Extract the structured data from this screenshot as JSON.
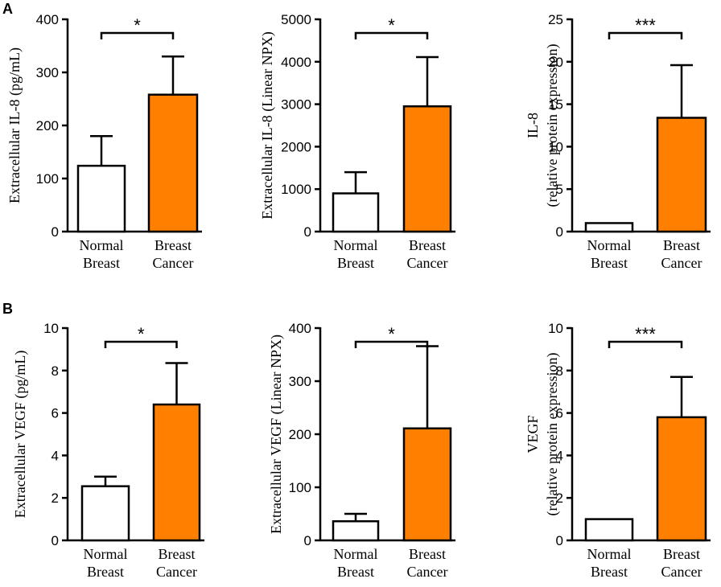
{
  "figure": {
    "panels": [
      {
        "label": "A"
      },
      {
        "label": "B"
      }
    ]
  },
  "colors": {
    "cancer_fill": "#ff8000",
    "normal_fill": "#ffffff",
    "stroke": "#000000"
  },
  "chart_data": [
    {
      "type": "bar",
      "panel": "A",
      "ylabel": [
        "Extracellular IL-8 (pg/mL)"
      ],
      "categories": [
        [
          "Normal",
          "Breast"
        ],
        [
          "Breast",
          "Cancer"
        ]
      ],
      "values": [
        124,
        258
      ],
      "errors": [
        56,
        72
      ],
      "ylim": [
        0,
        400
      ],
      "yticks": [
        0,
        100,
        200,
        300,
        400
      ],
      "significance": "*"
    },
    {
      "type": "bar",
      "panel": "A",
      "ylabel": [
        "Extracellular IL-8 (Linear NPX)"
      ],
      "categories": [
        [
          "Normal",
          "Breast"
        ],
        [
          "Breast",
          "Cancer"
        ]
      ],
      "values": [
        900,
        2950
      ],
      "errors": [
        500,
        1160
      ],
      "ylim": [
        0,
        5000
      ],
      "yticks": [
        0,
        1000,
        2000,
        3000,
        4000,
        5000
      ],
      "significance": "*"
    },
    {
      "type": "bar",
      "panel": "A",
      "ylabel": [
        "IL-8",
        "(relative protein expression)"
      ],
      "categories": [
        [
          "Normal",
          "Breast"
        ],
        [
          "Breast",
          "Cancer"
        ]
      ],
      "values": [
        1,
        13.4
      ],
      "errors": [
        0,
        6.2
      ],
      "ylim": [
        0,
        25
      ],
      "yticks": [
        0,
        5,
        10,
        15,
        20,
        25
      ],
      "significance": "***"
    },
    {
      "type": "bar",
      "panel": "B",
      "ylabel": [
        "Extracellular VEGF (pg/mL)"
      ],
      "categories": [
        [
          "Normal",
          "Breast"
        ],
        [
          "Breast",
          "Cancer"
        ]
      ],
      "values": [
        2.55,
        6.4
      ],
      "errors": [
        0.45,
        1.95
      ],
      "ylim": [
        0,
        10
      ],
      "yticks": [
        0,
        2,
        4,
        6,
        8,
        10
      ],
      "significance": "*"
    },
    {
      "type": "bar",
      "panel": "B",
      "ylabel": [
        "Extracellular VEGF (Linear NPX)"
      ],
      "categories": [
        [
          "Normal",
          "Breast"
        ],
        [
          "Breast",
          "Cancer"
        ]
      ],
      "values": [
        36,
        211
      ],
      "errors": [
        14,
        155
      ],
      "ylim": [
        0,
        400
      ],
      "yticks": [
        0,
        100,
        200,
        300,
        400
      ],
      "significance": "*"
    },
    {
      "type": "bar",
      "panel": "B",
      "ylabel": [
        "VEGF",
        "(relative protein expression)"
      ],
      "categories": [
        [
          "Normal",
          "Breast"
        ],
        [
          "Breast",
          "Cancer"
        ]
      ],
      "values": [
        1,
        5.8
      ],
      "errors": [
        0,
        1.9
      ],
      "ylim": [
        0,
        10
      ],
      "yticks": [
        0,
        2,
        4,
        6,
        8,
        10
      ],
      "significance": "***"
    }
  ]
}
